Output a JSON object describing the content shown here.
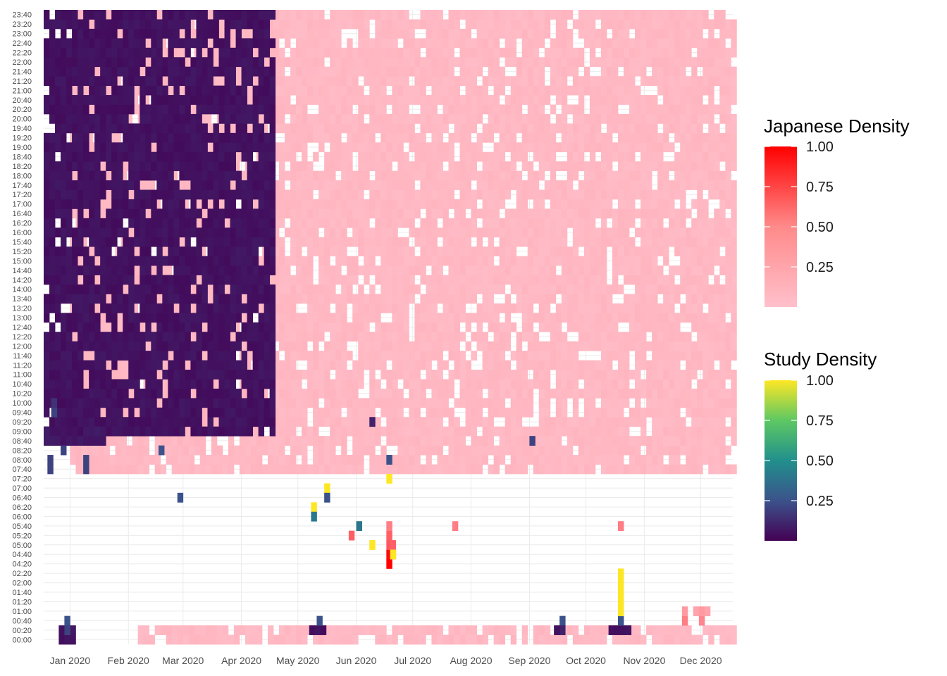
{
  "chart_data": {
    "type": "heatmap",
    "x_axis": {
      "type": "date",
      "range": [
        "2020-01-01",
        "2020-12-31"
      ],
      "ticks": [
        {
          "date": "2020-01-01",
          "label": "Jan 2020"
        },
        {
          "date": "2020-02-01",
          "label": "Feb 2020"
        },
        {
          "date": "2020-03-01",
          "label": "Mar 2020"
        },
        {
          "date": "2020-04-01",
          "label": "Apr 2020"
        },
        {
          "date": "2020-05-01",
          "label": "May 2020"
        },
        {
          "date": "2020-06-01",
          "label": "Jun 2020"
        },
        {
          "date": "2020-07-01",
          "label": "Jul 2020"
        },
        {
          "date": "2020-08-01",
          "label": "Aug 2020"
        },
        {
          "date": "2020-09-01",
          "label": "Sep 2020"
        },
        {
          "date": "2020-10-01",
          "label": "Oct 2020"
        },
        {
          "date": "2020-11-01",
          "label": "Nov 2020"
        },
        {
          "date": "2020-12-01",
          "label": "Dec 2020"
        }
      ]
    },
    "y_axis": {
      "type": "time_of_day",
      "ticks": [
        "00:00",
        "00:20",
        "00:40",
        "01:00",
        "01:20",
        "01:40",
        "02:00",
        "02:20",
        "04:20",
        "04:40",
        "05:00",
        "05:20",
        "05:40",
        "06:00",
        "06:20",
        "06:40",
        "07:00",
        "07:20",
        "07:40",
        "08:00",
        "08:20",
        "08:40",
        "09:00",
        "09:20",
        "09:40",
        "10:00",
        "10:20",
        "10:40",
        "11:00",
        "11:20",
        "11:40",
        "12:00",
        "12:20",
        "12:40",
        "13:00",
        "13:20",
        "13:40",
        "14:00",
        "14:20",
        "14:40",
        "15:00",
        "15:20",
        "15:40",
        "16:00",
        "16:20",
        "16:40",
        "17:00",
        "17:20",
        "17:40",
        "18:00",
        "18:20",
        "18:40",
        "19:00",
        "19:20",
        "19:40",
        "20:00",
        "20:20",
        "20:40",
        "21:00",
        "21:20",
        "21:40",
        "22:00",
        "22:20",
        "22:40",
        "23:00",
        "23:20",
        "23:40"
      ]
    },
    "grid": true,
    "series": [
      {
        "name": "Japanese Density",
        "colors": [
          "#FFC0CB",
          "#FF0000"
        ],
        "cells": [
          {
            "date": "2020-07-01",
            "time": "04:20",
            "value": 1.0
          },
          {
            "date": "2020-07-01",
            "time": "04:40",
            "value": 0.95
          },
          {
            "date": "2020-07-01",
            "time": "05:00",
            "value": 0.55
          },
          {
            "date": "2020-07-01",
            "time": "05:20",
            "value": 0.5
          },
          {
            "date": "2020-07-01",
            "time": "05:40",
            "value": 0.35
          },
          {
            "date": "2020-07-03",
            "time": "05:00",
            "value": 0.5
          },
          {
            "date": "2020-07-03",
            "time": "04:40",
            "value": 0.6
          },
          {
            "date": "2020-06-11",
            "time": "05:20",
            "value": 0.5
          },
          {
            "date": "2020-08-05",
            "time": "05:40",
            "value": 0.35
          },
          {
            "date": "2020-11-01",
            "time": "05:40",
            "value": 0.35
          },
          {
            "date": "2020-12-05",
            "time": "00:40",
            "value": 0.35
          },
          {
            "date": "2020-12-14",
            "time": "00:40",
            "value": 0.3
          },
          {
            "date": "2020-12-05",
            "time": "01:00",
            "value": 0.2
          },
          {
            "date": "2020-12-11",
            "time": "01:00",
            "value": 0.15
          },
          {
            "date": "2020-12-14",
            "time": "01:00",
            "value": 0.2
          },
          {
            "date": "2020-12-17",
            "time": "01:00",
            "value": 0.15
          }
        ],
        "fill_regions": [
          {
            "from_date": "2020-01-15",
            "to_date": "2020-12-31",
            "from_time": "07:40",
            "to_time": "23:40",
            "value": 0.02
          },
          {
            "from_date": "2020-02-20",
            "to_date": "2020-12-31",
            "from_time": "00:00",
            "to_time": "00:20",
            "value": 0.02
          }
        ]
      },
      {
        "name": "Study Density",
        "colors": [
          "#440154",
          "#3B528B",
          "#21908C",
          "#5DC863",
          "#FDE725"
        ],
        "cells": [
          {
            "date": "2020-11-01",
            "time": "00:40",
            "value": 0.25
          },
          {
            "date": "2020-11-01",
            "time": "01:00",
            "value": 1.0
          },
          {
            "date": "2020-11-01",
            "time": "01:20",
            "value": 1.0
          },
          {
            "date": "2020-11-01",
            "time": "01:40",
            "value": 1.0
          },
          {
            "date": "2020-11-01",
            "time": "02:00",
            "value": 1.0
          },
          {
            "date": "2020-11-01",
            "time": "02:20",
            "value": 1.0
          },
          {
            "date": "2020-07-01",
            "time": "07:20",
            "value": 1.0
          },
          {
            "date": "2020-07-01",
            "time": "08:00",
            "value": 0.25
          },
          {
            "date": "2020-07-03",
            "time": "04:40",
            "value": 1.0
          },
          {
            "date": "2020-06-22",
            "time": "05:00",
            "value": 1.0
          },
          {
            "date": "2020-06-15",
            "time": "05:40",
            "value": 0.4
          },
          {
            "date": "2020-05-22",
            "time": "06:20",
            "value": 1.0
          },
          {
            "date": "2020-05-22",
            "time": "06:00",
            "value": 0.4
          },
          {
            "date": "2020-05-29",
            "time": "07:00",
            "value": 1.0
          },
          {
            "date": "2020-05-29",
            "time": "06:40",
            "value": 0.25
          },
          {
            "date": "2020-03-12",
            "time": "06:40",
            "value": 0.25
          },
          {
            "date": "2020-03-02",
            "time": "08:20",
            "value": 0.25
          },
          {
            "date": "2020-01-03",
            "time": "08:00",
            "value": 0.2
          },
          {
            "date": "2020-01-03",
            "time": "07:40",
            "value": 0.2
          },
          {
            "date": "2020-01-10",
            "time": "08:20",
            "value": 0.2
          },
          {
            "date": "2020-01-22",
            "time": "08:00",
            "value": 0.2
          },
          {
            "date": "2020-01-22",
            "time": "07:40",
            "value": 0.2
          },
          {
            "date": "2020-01-12",
            "time": "00:40",
            "value": 0.25
          },
          {
            "date": "2020-01-12",
            "time": "00:20",
            "value": 0.2
          },
          {
            "date": "2020-05-25",
            "time": "00:40",
            "value": 0.25
          },
          {
            "date": "2020-10-01",
            "time": "00:40",
            "value": 0.25
          },
          {
            "date": "2020-10-01",
            "time": "00:20",
            "value": 0.1
          },
          {
            "date": "2020-09-28",
            "time": "00:20",
            "value": 0.05
          },
          {
            "date": "2020-06-22",
            "time": "09:20",
            "value": 0.1
          },
          {
            "date": "2020-09-15",
            "time": "08:40",
            "value": 0.2
          },
          {
            "date": "2020-01-05",
            "time": "09:40",
            "value": 0.2
          },
          {
            "date": "2020-01-05",
            "time": "10:00",
            "value": 0.15
          }
        ],
        "fill_regions": [
          {
            "from_date": "2020-01-01",
            "to_date": "2020-04-30",
            "from_time": "09:00",
            "to_time": "23:40",
            "value": 0.03
          },
          {
            "from_date": "2020-01-01",
            "to_date": "2020-01-31",
            "from_time": "08:40",
            "to_time": "09:00",
            "value": 0.05
          },
          {
            "from_date": "2020-01-09",
            "to_date": "2020-01-15",
            "from_time": "00:00",
            "to_time": "00:20",
            "value": 0.03
          },
          {
            "from_date": "2020-05-21",
            "to_date": "2020-05-27",
            "from_time": "00:20",
            "to_time": "00:20",
            "value": 0.03
          },
          {
            "from_date": "2020-10-27",
            "to_date": "2020-11-05",
            "from_time": "00:20",
            "to_time": "00:20",
            "value": 0.03
          }
        ]
      }
    ],
    "legends": [
      {
        "title": "Japanese Density",
        "labels": [
          "1.00",
          "0.75",
          "0.50",
          "0.25"
        ],
        "values": [
          1.0,
          0.75,
          0.5,
          0.25
        ],
        "colors": [
          "#FF0000",
          "#FF6347",
          "#FFA4A4",
          "#FFC0CB"
        ]
      },
      {
        "title": "Study Density",
        "labels": [
          "1.00",
          "0.75",
          "0.50",
          "0.25"
        ],
        "values": [
          1.0,
          0.75,
          0.5,
          0.25
        ],
        "colors": [
          "#FDE725",
          "#5DC863",
          "#21908C",
          "#3B528B",
          "#440154"
        ]
      }
    ],
    "legend_placement": "right"
  }
}
